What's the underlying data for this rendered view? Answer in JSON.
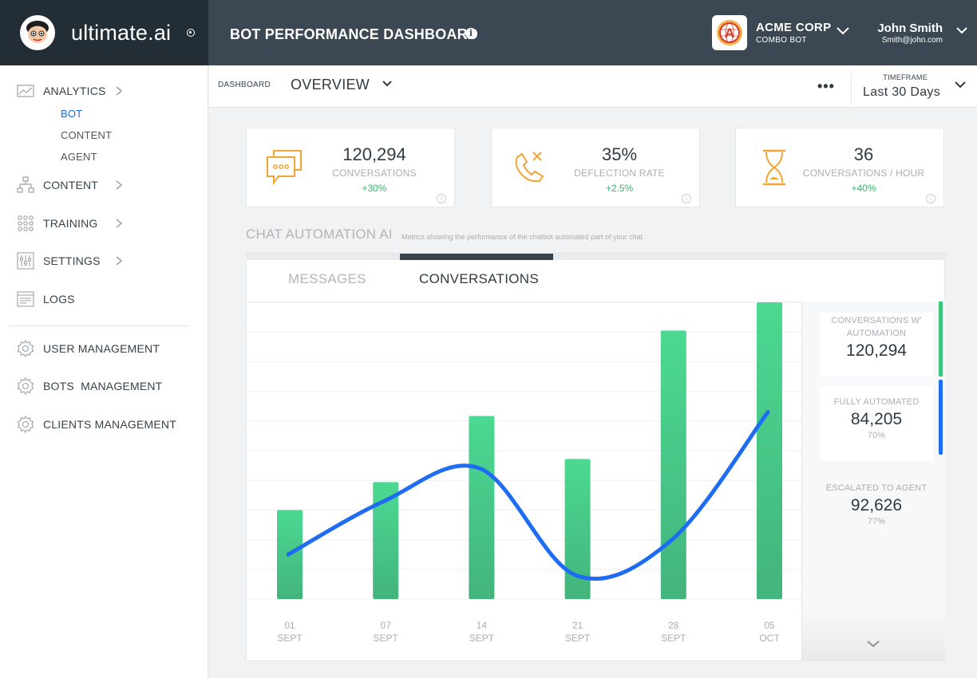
{
  "brand": {
    "name": "ultimate.ai"
  },
  "header": {
    "title": "BOT PERFORMANCE DASHBOARD",
    "info_icon": "info-icon",
    "company": {
      "name": "ACME CORP",
      "subtitle": "COMBO BOT",
      "logo_letter": "A"
    },
    "user": {
      "name": "John Smith",
      "email": "Smith@john.com"
    }
  },
  "sidebar": {
    "items": [
      {
        "label": "ANALYTICS",
        "icon": "analytics-icon",
        "has_chevron": true
      },
      {
        "label": "CONTENT",
        "icon": "sitemap-icon",
        "has_chevron": true
      },
      {
        "label": "TRAINING",
        "icon": "grid-dots-icon",
        "has_chevron": true
      },
      {
        "label": "SETTINGS",
        "icon": "sliders-icon",
        "has_chevron": true
      },
      {
        "label": "LOGS",
        "icon": "logs-icon",
        "has_chevron": false
      },
      {
        "label": "USER MANAGEMENT",
        "icon": "gear-icon",
        "has_chevron": false
      },
      {
        "label": "BOTS  MANAGEMENT",
        "icon": "gear-icon",
        "has_chevron": false
      },
      {
        "label": "CLIENTS MANAGEMENT",
        "icon": "gear-icon",
        "has_chevron": false
      }
    ],
    "analytics_sub": [
      {
        "label": "BOT",
        "active": true
      },
      {
        "label": "CONTENT",
        "active": false
      },
      {
        "label": "AGENT",
        "active": false
      }
    ]
  },
  "subheader": {
    "dashboard_label": "DASHBOARD",
    "view": "OVERVIEW",
    "more": "•••",
    "timeframe_label": "TIMEFRAME",
    "timeframe_value": "Last 30 Days"
  },
  "kpis": [
    {
      "value": "120,294",
      "label": "CONVERSATIONS",
      "change": "+30%",
      "icon": "chat-bubbles-icon"
    },
    {
      "value": "35%",
      "label": "DEFLECTION RATE",
      "change": "+2.5%",
      "icon": "phone-declined-icon"
    },
    {
      "value": "36",
      "label": "CONVERSATIONS / HOUR",
      "change": "+40%",
      "icon": "hourglass-icon"
    }
  ],
  "section": {
    "title": "CHAT AUTOMATION AI",
    "description": "Metrics showing the performance of the chatbot automated part of your chat"
  },
  "tabs": [
    {
      "label": "MESSAGES",
      "active": false
    },
    {
      "label": "CONVERSATIONS",
      "active": true
    }
  ],
  "stats": [
    {
      "label": "CONVERSATIONS W' AUTOMATION",
      "value": "120,294",
      "pct": "",
      "bar_color": "#3fc47e"
    },
    {
      "label": "FULLY AUTOMATED",
      "value": "84,205",
      "pct": "70%",
      "bar_color": "#1d6cf2"
    },
    {
      "label": "ESCALATED TO AGENT",
      "value": "92,626",
      "pct": "77%",
      "bar_color": ""
    }
  ],
  "colors": {
    "accent_blue": "#1d6cf2",
    "bar_green_top": "#4cd992",
    "bar_green_bottom": "#43b47c",
    "positive": "#2fb86b",
    "kpi_icon": "#f0a534"
  },
  "chart_data": {
    "type": "bar",
    "categories": [
      [
        "01",
        "SEPT"
      ],
      [
        "07",
        "SEPT"
      ],
      [
        "14",
        "SEPT"
      ],
      [
        "21",
        "SEPT"
      ],
      [
        "28",
        "SEPT"
      ],
      [
        "05",
        "OCT"
      ]
    ],
    "series": [
      {
        "type": "bar",
        "values": [
          30,
          39.4,
          61.7,
          47.2,
          90.5,
          100
        ]
      },
      {
        "type": "line",
        "values": [
          15,
          33,
          44,
          8,
          20,
          63
        ]
      }
    ],
    "ylim": [
      0,
      100
    ],
    "grid": true,
    "legend": "none"
  }
}
